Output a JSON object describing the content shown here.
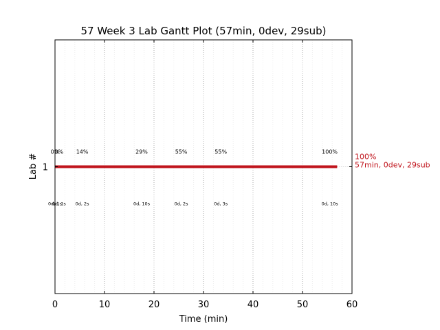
{
  "chart_data": {
    "type": "gantt",
    "title": "57 Week 3 Lab Gantt Plot (57min, 0dev, 29sub)",
    "xlabel": "Time (min)",
    "ylabel": "Lab #",
    "xlim": [
      0,
      60
    ],
    "ylim": [
      0,
      2
    ],
    "x_ticks": [
      0,
      10,
      20,
      30,
      40,
      50,
      60
    ],
    "x_tick_labels": [
      "0",
      "10",
      "20",
      "30",
      "40",
      "50",
      "60"
    ],
    "y_ticks": [
      1
    ],
    "y_tick_labels": [
      "1"
    ],
    "grid": "vertical dotted every 10 min, faint every 2 min",
    "bar_color": "#c0141c",
    "series": [
      {
        "lab": 1,
        "start": 0,
        "end": 57,
        "end_label_line1": "100%",
        "end_label_line2": "57min, 0dev, 29sub",
        "milestones": [
          {
            "x": 0.0,
            "pct": "0%",
            "detail": "0d, 1s"
          },
          {
            "x": 0.8,
            "pct": "0%",
            "detail": "0d, 1s"
          },
          {
            "x": 5.5,
            "pct": "14%",
            "detail": "0d, 2s"
          },
          {
            "x": 17.5,
            "pct": "29%",
            "detail": "0d, 10s"
          },
          {
            "x": 25.5,
            "pct": "55%",
            "detail": "0d, 2s"
          },
          {
            "x": 33.5,
            "pct": "55%",
            "detail": "0d, 3s"
          },
          {
            "x": 55.5,
            "pct": "100%",
            "detail": "0d, 10s"
          }
        ]
      }
    ]
  }
}
